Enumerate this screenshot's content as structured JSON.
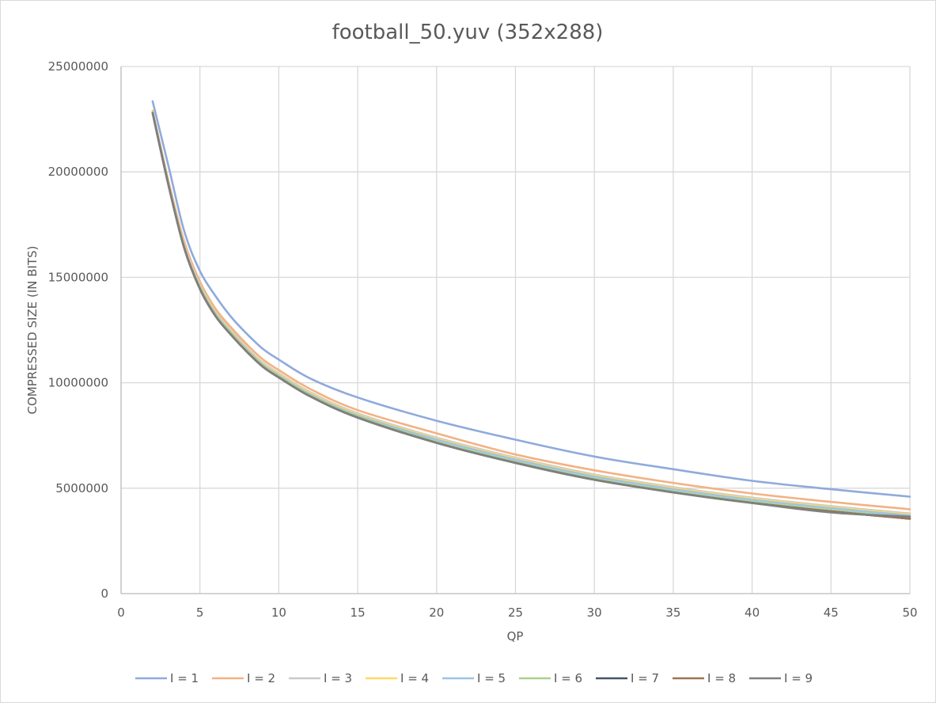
{
  "chart_data": {
    "type": "line",
    "title": "football_50.yuv (352x288)",
    "xlabel": "QP",
    "ylabel": "COMPRESSED SIZE (IN BITS)",
    "xlim": [
      0,
      50
    ],
    "ylim": [
      0,
      25000000
    ],
    "xticks": [
      0,
      5,
      10,
      15,
      20,
      25,
      30,
      35,
      40,
      45,
      50
    ],
    "yticks": [
      0,
      5000000,
      10000000,
      15000000,
      20000000,
      25000000
    ],
    "xtick_labels": [
      "0",
      "5",
      "10",
      "15",
      "20",
      "25",
      "30",
      "35",
      "40",
      "45",
      "50"
    ],
    "ytick_labels": [
      "0",
      "5000000",
      "10000000",
      "15000000",
      "20000000",
      "25000000"
    ],
    "grid": true,
    "legend_position": "bottom",
    "x": [
      2,
      3,
      4,
      5,
      6,
      7,
      8,
      9,
      10,
      12,
      15,
      20,
      25,
      30,
      35,
      40,
      45,
      50
    ],
    "series": [
      {
        "name": "I = 1",
        "color": "#8faadc",
        "values": [
          23350000,
          20300000,
          17200000,
          15300000,
          14100000,
          13100000,
          12300000,
          11600000,
          11100000,
          10200000,
          9300000,
          8200000,
          7300000,
          6500000,
          5900000,
          5350000,
          4950000,
          4600000
        ]
      },
      {
        "name": "I = 2",
        "color": "#f4b183",
        "values": [
          22900000,
          19600000,
          16700000,
          14800000,
          13500000,
          12600000,
          11800000,
          11100000,
          10600000,
          9700000,
          8700000,
          7600000,
          6600000,
          5850000,
          5250000,
          4750000,
          4350000,
          4000000
        ]
      },
      {
        "name": "I = 3",
        "color": "#c9c9c9",
        "values": [
          22850000,
          19500000,
          16550000,
          14650000,
          13350000,
          12450000,
          11650000,
          10950000,
          10450000,
          9550000,
          8550000,
          7400000,
          6450000,
          5650000,
          5050000,
          4550000,
          4150000,
          3800000
        ]
      },
      {
        "name": "I = 4",
        "color": "#ffd966",
        "values": [
          22850000,
          19500000,
          16500000,
          14600000,
          13300000,
          12400000,
          11600000,
          10900000,
          10400000,
          9500000,
          8500000,
          7350000,
          6400000,
          5600000,
          5000000,
          4500000,
          4100000,
          3750000
        ]
      },
      {
        "name": "I = 5",
        "color": "#9dc3e6",
        "values": [
          22800000,
          19450000,
          16450000,
          14550000,
          13250000,
          12350000,
          11550000,
          10850000,
          10350000,
          9450000,
          8450000,
          7300000,
          6350000,
          5550000,
          4950000,
          4450000,
          4050000,
          3700000
        ]
      },
      {
        "name": "I = 6",
        "color": "#a9d18e",
        "values": [
          22800000,
          19400000,
          16400000,
          14500000,
          13200000,
          12300000,
          11500000,
          10800000,
          10300000,
          9400000,
          8400000,
          7200000,
          6250000,
          5450000,
          4850000,
          4350000,
          3950000,
          3600000
        ]
      },
      {
        "name": "I = 7",
        "color": "#44546a",
        "values": [
          22800000,
          19400000,
          16400000,
          14450000,
          13150000,
          12250000,
          11450000,
          10750000,
          10250000,
          9350000,
          8350000,
          7150000,
          6200000,
          5400000,
          4800000,
          4300000,
          3900000,
          3550000
        ]
      },
      {
        "name": "I = 8",
        "color": "#9e7451",
        "values": [
          22800000,
          19400000,
          16400000,
          14450000,
          13150000,
          12250000,
          11450000,
          10750000,
          10250000,
          9350000,
          8350000,
          7150000,
          6200000,
          5400000,
          4800000,
          4300000,
          3900000,
          3550000
        ]
      },
      {
        "name": "I = 9",
        "color": "#7f7f7f",
        "values": [
          22800000,
          19400000,
          16400000,
          14450000,
          13150000,
          12250000,
          11450000,
          10750000,
          10250000,
          9350000,
          8350000,
          7150000,
          6200000,
          5400000,
          4800000,
          4300000,
          3850000,
          3650000
        ]
      }
    ]
  }
}
